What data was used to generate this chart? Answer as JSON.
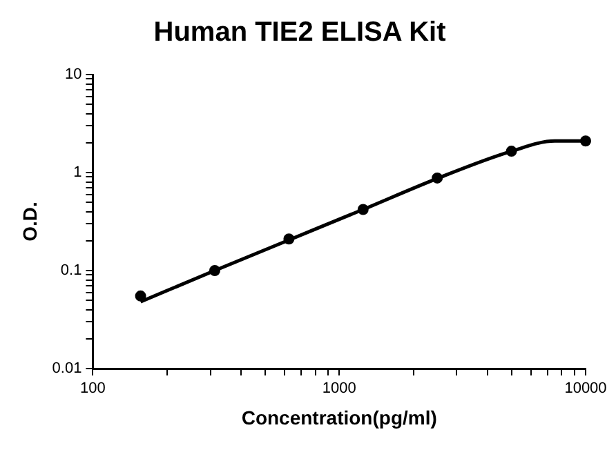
{
  "chart_data": {
    "type": "scatter",
    "title": "Human TIE2 ELISA Kit",
    "xlabel": "Concentration(pg/ml)",
    "ylabel": "O.D.",
    "log": "xy",
    "grid": false,
    "legend": false,
    "xlim": [
      100,
      10000
    ],
    "ylim": [
      0.01,
      10
    ],
    "xticks": [
      100,
      {
        "value": 200,
        "label": null
      },
      {
        "value": 300,
        "label": null
      },
      {
        "value": 400,
        "label": null
      },
      {
        "value": 500,
        "label": null
      },
      {
        "value": 600,
        "label": null
      },
      {
        "value": 700,
        "label": null
      },
      {
        "value": 800,
        "label": null
      },
      {
        "value": 900,
        "label": null
      },
      1000,
      {
        "value": 2000,
        "label": null
      },
      {
        "value": 3000,
        "label": null
      },
      {
        "value": 4000,
        "label": null
      },
      {
        "value": 5000,
        "label": null
      },
      {
        "value": 6000,
        "label": null
      },
      {
        "value": 7000,
        "label": null
      },
      {
        "value": 8000,
        "label": null
      },
      {
        "value": 9000,
        "label": null
      },
      10000
    ],
    "yticks": [
      0.01,
      {
        "value": 0.02,
        "label": null
      },
      {
        "value": 0.03,
        "label": null
      },
      {
        "value": 0.04,
        "label": null
      },
      {
        "value": 0.05,
        "label": null
      },
      {
        "value": 0.06,
        "label": null
      },
      {
        "value": 0.07,
        "label": null
      },
      {
        "value": 0.08,
        "label": null
      },
      {
        "value": 0.09,
        "label": null
      },
      0.1,
      {
        "value": 0.2,
        "label": null
      },
      {
        "value": 0.3,
        "label": null
      },
      {
        "value": 0.4,
        "label": null
      },
      {
        "value": 0.5,
        "label": null
      },
      {
        "value": 0.6,
        "label": null
      },
      {
        "value": 0.7,
        "label": null
      },
      {
        "value": 0.8,
        "label": null
      },
      {
        "value": 0.9,
        "label": null
      },
      1,
      {
        "value": 2,
        "label": null
      },
      {
        "value": 3,
        "label": null
      },
      {
        "value": 4,
        "label": null
      },
      {
        "value": 5,
        "label": null
      },
      {
        "value": 6,
        "label": null
      },
      {
        "value": 7,
        "label": null
      },
      {
        "value": 8,
        "label": null
      },
      {
        "value": 9,
        "label": null
      },
      10
    ],
    "series": [
      {
        "marker": "circle",
        "color": "#000000",
        "x": [
          156.25,
          312.5,
          625,
          1250,
          2500,
          5000,
          10000
        ],
        "values": [
          0.055,
          0.1,
          0.21,
          0.42,
          0.88,
          1.65,
          2.1
        ]
      },
      {
        "type": "line",
        "marker": "none",
        "line_style": "solid",
        "color": "#000000",
        "x": [
          156.25,
          312.5,
          625,
          1250,
          2500,
          5000,
          7500,
          10000
        ],
        "values": [
          0.048,
          0.1,
          0.205,
          0.42,
          0.87,
          1.65,
          2.1,
          2.1
        ]
      }
    ]
  }
}
